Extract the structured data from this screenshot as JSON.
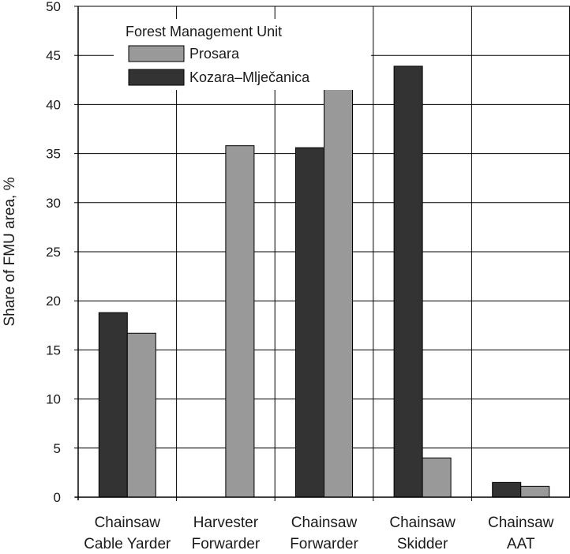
{
  "chart_data": {
    "type": "bar",
    "categories": [
      [
        "Chainsaw",
        "Cable Yarder"
      ],
      [
        "Harvester",
        "Forwarder"
      ],
      [
        "Chainsaw",
        "Forwarder"
      ],
      [
        "Chainsaw",
        "Skidder"
      ],
      [
        "Chainsaw",
        "AAT"
      ]
    ],
    "series": [
      {
        "name": "Kozara–Mlječanica",
        "color": "#333333",
        "values": [
          18.8,
          0,
          35.6,
          43.9,
          1.5
        ]
      },
      {
        "name": "Prosara",
        "color": "#999999",
        "values": [
          16.7,
          35.8,
          42.3,
          4.0,
          1.1
        ]
      }
    ],
    "ylabel": "Share of FMU area, %",
    "ylim": [
      0,
      50
    ],
    "yticks": [
      0,
      5,
      10,
      15,
      20,
      25,
      30,
      35,
      40,
      45,
      50
    ],
    "grid": true,
    "legend": {
      "title": "Forest Management Unit",
      "placement": "top-left",
      "order": [
        "Prosara",
        "Kozara–Mlječanica"
      ]
    }
  }
}
